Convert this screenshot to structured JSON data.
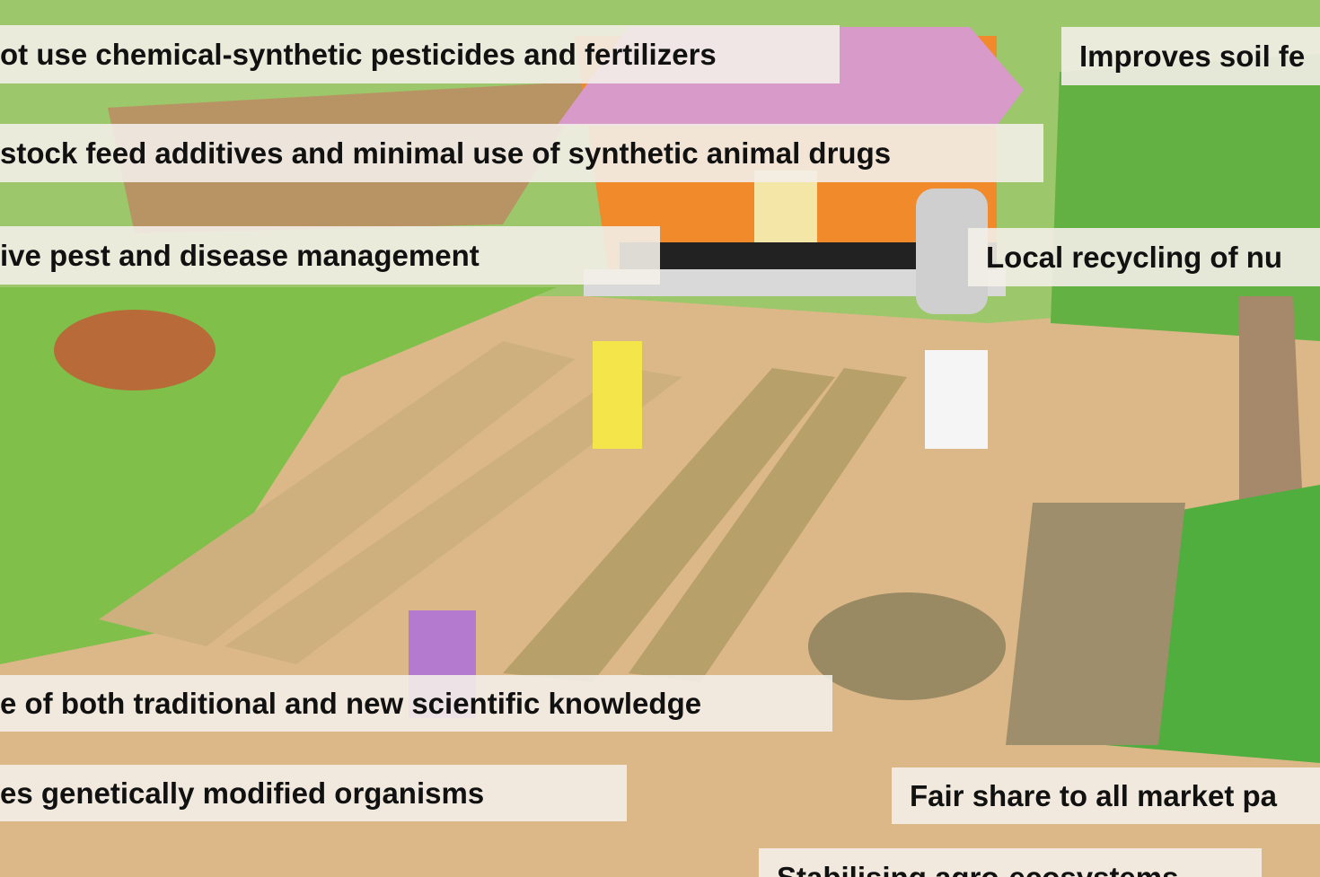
{
  "labels": [
    "ot use chemical-synthetic pesticides and fertilizers",
    "stock feed additives and minimal use of synthetic animal drugs",
    "ive pest and disease management",
    "e of both traditional and new scientific knowledge",
    "es genetically modified organisms",
    "Improves soil fe",
    "Local recycling of nu",
    "Fair share to all market pa",
    "Stabilising agro-ecosystems"
  ]
}
